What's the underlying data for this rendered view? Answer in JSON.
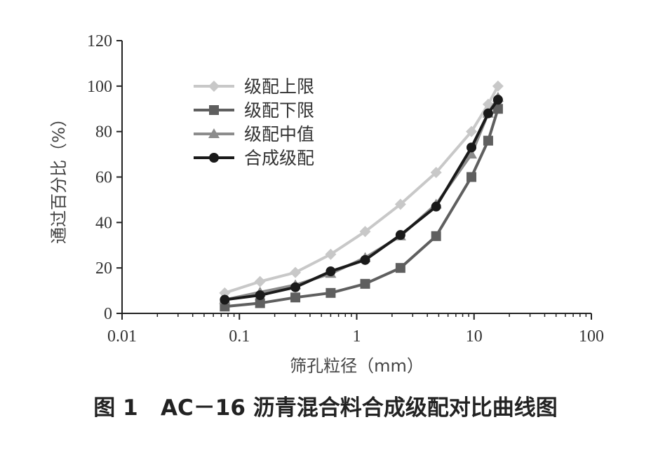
{
  "caption": "图 1   AC－16 沥青混合料合成级配对比曲线图",
  "chart_data": {
    "type": "line",
    "xscale": "log",
    "xlim": [
      0.01,
      100
    ],
    "ylim": [
      0,
      120
    ],
    "xlabel": "筛孔粒径（mm）",
    "ylabel": "通过百分比（%）",
    "x_ticks": [
      0.01,
      0.1,
      1,
      10,
      100
    ],
    "x_tick_labels": [
      "0.01",
      "0.1",
      "1",
      "10",
      "100"
    ],
    "y_ticks": [
      0,
      20,
      40,
      60,
      80,
      100,
      120
    ],
    "y_tick_labels": [
      "0",
      "20",
      "40",
      "60",
      "80",
      "100",
      "120"
    ],
    "grid": false,
    "legend_position": "top-left",
    "x": [
      0.075,
      0.15,
      0.3,
      0.6,
      1.18,
      2.36,
      4.75,
      9.5,
      13.2,
      16
    ],
    "series": [
      {
        "name": "级配上限",
        "marker": "diamond",
        "color": "#c8c8c8",
        "values": [
          9,
          14,
          18,
          26,
          36,
          48,
          62,
          80,
          92,
          100
        ]
      },
      {
        "name": "级配下限",
        "marker": "square",
        "color": "#5f5f5f",
        "values": [
          3,
          4.5,
          7,
          9,
          13,
          20,
          34,
          60,
          76,
          90
        ]
      },
      {
        "name": "级配中值",
        "marker": "triangle",
        "color": "#8c8c8c",
        "values": [
          6,
          9.3,
          12.5,
          17.5,
          24.5,
          34,
          48,
          70,
          88,
          95
        ]
      },
      {
        "name": "合成级配",
        "marker": "circle",
        "color": "#1a1a1a",
        "values": [
          6,
          8,
          11.5,
          18.5,
          23.5,
          34.5,
          47,
          73,
          88,
          94
        ]
      }
    ]
  }
}
